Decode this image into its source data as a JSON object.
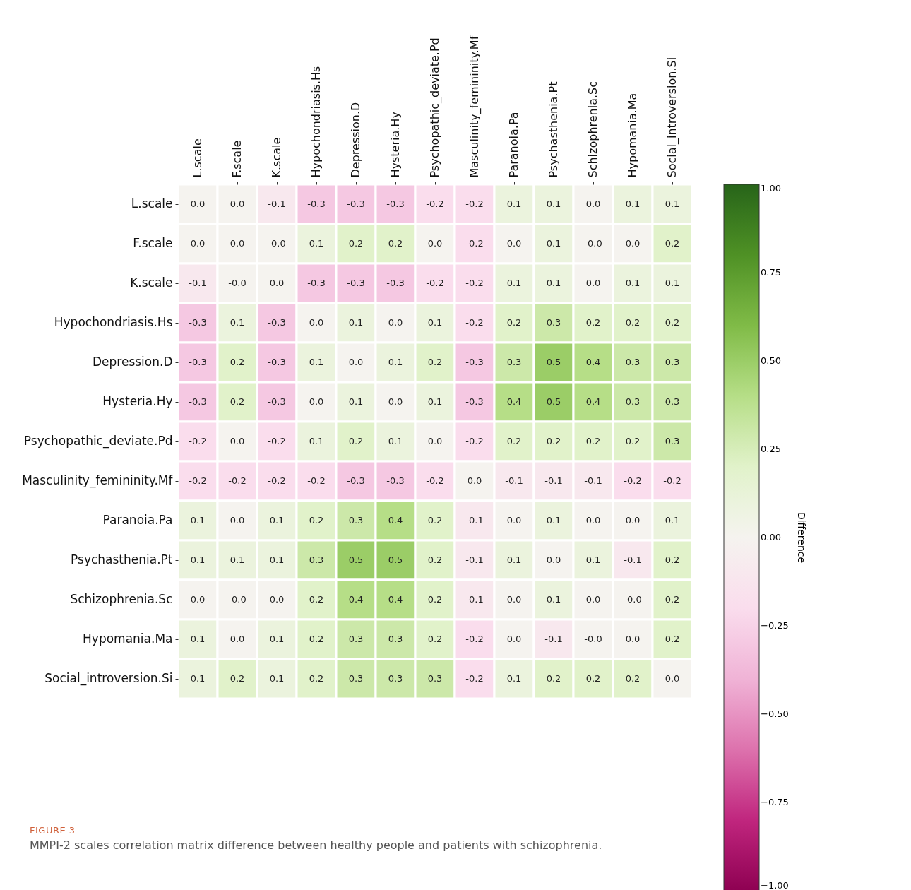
{
  "chart_data": {
    "type": "heatmap",
    "categories": [
      "L.scale",
      "F.scale",
      "K.scale",
      "Hypochondriasis.Hs",
      "Depression.D",
      "Hysteria.Hy",
      "Psychopathic_deviate.Pd",
      "Masculinity_femininity.Mf",
      "Paranoia.Pa",
      "Psychasthenia.Pt",
      "Schizophrenia.Sc",
      "Hypomania.Ma",
      "Social_introversion.Si"
    ],
    "y_categories": [
      "L.scale",
      "F.scale",
      "K.scale",
      "Hypochondriasis.Hs",
      "Depression.D",
      "Hysteria.Hy",
      "Psychopathic_deviate.Pd",
      "Masculinity_femininity.Mf",
      "Paranoia.Pa",
      "Psychasthenia.Pt",
      "Schizophrenia.Sc",
      "Hypomania.Ma",
      "Social_introversion.Si"
    ],
    "cells": [
      [
        0.0,
        0.0,
        -0.1,
        -0.3,
        -0.3,
        -0.3,
        -0.2,
        -0.2,
        0.1,
        0.1,
        0.0,
        0.1,
        0.1
      ],
      [
        0.0,
        0.0,
        0.0,
        0.1,
        0.2,
        0.2,
        0.0,
        -0.2,
        0.0,
        0.1,
        0.0,
        0.0,
        0.2
      ],
      [
        -0.1,
        0.0,
        0.0,
        -0.3,
        -0.3,
        -0.3,
        -0.2,
        -0.2,
        0.1,
        0.1,
        0.0,
        0.1,
        0.1
      ],
      [
        -0.3,
        0.1,
        -0.3,
        0.0,
        0.1,
        0.0,
        0.1,
        -0.2,
        0.2,
        0.3,
        0.2,
        0.2,
        0.2
      ],
      [
        -0.3,
        0.2,
        -0.3,
        0.1,
        0.0,
        0.1,
        0.2,
        -0.3,
        0.3,
        0.5,
        0.4,
        0.3,
        0.3
      ],
      [
        -0.3,
        0.2,
        -0.3,
        0.0,
        0.1,
        0.0,
        0.1,
        -0.3,
        0.4,
        0.5,
        0.4,
        0.3,
        0.3
      ],
      [
        -0.2,
        0.0,
        -0.2,
        0.1,
        0.2,
        0.1,
        0.0,
        -0.2,
        0.2,
        0.2,
        0.2,
        0.2,
        0.3
      ],
      [
        -0.2,
        -0.2,
        -0.2,
        -0.2,
        -0.3,
        -0.3,
        -0.2,
        0.0,
        -0.1,
        -0.1,
        -0.1,
        -0.2,
        -0.2
      ],
      [
        0.1,
        0.0,
        0.1,
        0.2,
        0.3,
        0.4,
        0.2,
        -0.1,
        0.0,
        0.1,
        0.0,
        0.0,
        0.1
      ],
      [
        0.1,
        0.1,
        0.1,
        0.3,
        0.5,
        0.5,
        0.2,
        -0.1,
        0.1,
        0.0,
        0.1,
        -0.1,
        0.2
      ],
      [
        0.0,
        0.0,
        0.0,
        0.2,
        0.4,
        0.4,
        0.2,
        -0.1,
        0.0,
        0.1,
        0.0,
        0.0,
        0.2
      ],
      [
        0.1,
        0.0,
        0.1,
        0.2,
        0.3,
        0.3,
        0.2,
        -0.2,
        0.0,
        -0.1,
        0.0,
        0.0,
        0.2
      ],
      [
        0.1,
        0.2,
        0.1,
        0.2,
        0.3,
        0.3,
        0.3,
        -0.2,
        0.1,
        0.2,
        0.2,
        0.2,
        0.0
      ]
    ],
    "cell_labels": [
      [
        "0.0",
        "0.0",
        "-0.1",
        "-0.3",
        "-0.3",
        "-0.3",
        "-0.2",
        "-0.2",
        "0.1",
        "0.1",
        "0.0",
        "0.1",
        "0.1"
      ],
      [
        "0.0",
        "0.0",
        "-0.0",
        "0.1",
        "0.2",
        "0.2",
        "0.0",
        "-0.2",
        "0.0",
        "0.1",
        "-0.0",
        "0.0",
        "0.2"
      ],
      [
        "-0.1",
        "-0.0",
        "0.0",
        "-0.3",
        "-0.3",
        "-0.3",
        "-0.2",
        "-0.2",
        "0.1",
        "0.1",
        "0.0",
        "0.1",
        "0.1"
      ],
      [
        "-0.3",
        "0.1",
        "-0.3",
        "0.0",
        "0.1",
        "0.0",
        "0.1",
        "-0.2",
        "0.2",
        "0.3",
        "0.2",
        "0.2",
        "0.2"
      ],
      [
        "-0.3",
        "0.2",
        "-0.3",
        "0.1",
        "0.0",
        "0.1",
        "0.2",
        "-0.3",
        "0.3",
        "0.5",
        "0.4",
        "0.3",
        "0.3"
      ],
      [
        "-0.3",
        "0.2",
        "-0.3",
        "0.0",
        "0.1",
        "0.0",
        "0.1",
        "-0.3",
        "0.4",
        "0.5",
        "0.4",
        "0.3",
        "0.3"
      ],
      [
        "-0.2",
        "0.0",
        "-0.2",
        "0.1",
        "0.2",
        "0.1",
        "0.0",
        "-0.2",
        "0.2",
        "0.2",
        "0.2",
        "0.2",
        "0.3"
      ],
      [
        "-0.2",
        "-0.2",
        "-0.2",
        "-0.2",
        "-0.3",
        "-0.3",
        "-0.2",
        "0.0",
        "-0.1",
        "-0.1",
        "-0.1",
        "-0.2",
        "-0.2"
      ],
      [
        "0.1",
        "0.0",
        "0.1",
        "0.2",
        "0.3",
        "0.4",
        "0.2",
        "-0.1",
        "0.0",
        "0.1",
        "0.0",
        "0.0",
        "0.1"
      ],
      [
        "0.1",
        "0.1",
        "0.1",
        "0.3",
        "0.5",
        "0.5",
        "0.2",
        "-0.1",
        "0.1",
        "0.0",
        "0.1",
        "-0.1",
        "0.2"
      ],
      [
        "0.0",
        "-0.0",
        "0.0",
        "0.2",
        "0.4",
        "0.4",
        "0.2",
        "-0.1",
        "0.0",
        "0.1",
        "0.0",
        "-0.0",
        "0.2"
      ],
      [
        "0.1",
        "0.0",
        "0.1",
        "0.2",
        "0.3",
        "0.3",
        "0.2",
        "-0.2",
        "0.0",
        "-0.1",
        "-0.0",
        "0.0",
        "0.2"
      ],
      [
        "0.1",
        "0.2",
        "0.1",
        "0.2",
        "0.3",
        "0.3",
        "0.3",
        "-0.2",
        "0.1",
        "0.2",
        "0.2",
        "0.2",
        "0.0"
      ]
    ],
    "clabel": "Difference",
    "clim": [
      -1,
      1
    ],
    "cticks": [
      {
        "value": 1,
        "label": "1.00"
      },
      {
        "value": 0.75,
        "label": "0.75"
      },
      {
        "value": 0.5,
        "label": "0.50"
      },
      {
        "value": 0.25,
        "label": "0.25"
      },
      {
        "value": 0,
        "label": "0.00"
      },
      {
        "value": -0.25,
        "label": "−0.25"
      },
      {
        "value": -0.5,
        "label": "−0.50"
      },
      {
        "value": -0.75,
        "label": "−0.75"
      },
      {
        "value": -1,
        "label": "−1.00"
      }
    ],
    "annotations": [
      "FIGURE 3",
      "MMPI-2 scales correlation matrix difference between healthy people and patients with schizophrenia."
    ]
  }
}
